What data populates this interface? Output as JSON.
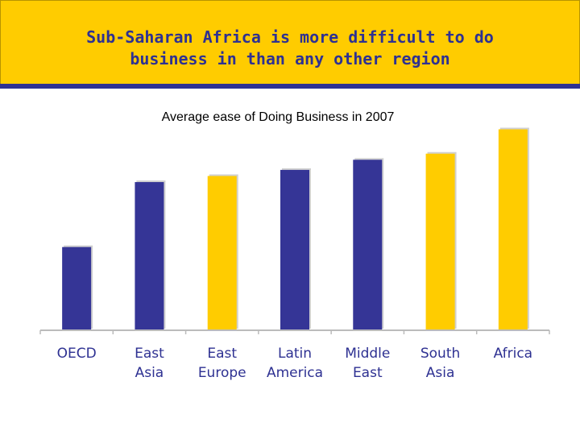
{
  "title_line1": "Sub-Saharan Africa is more difficult to do",
  "title_line2": "business in than any other region",
  "chart_data": {
    "type": "bar",
    "title": "Average ease of Doing Business in 2007",
    "categories": [
      [
        "OECD"
      ],
      [
        "East",
        "Asia"
      ],
      [
        "East",
        "Europe"
      ],
      [
        "Latin",
        "America"
      ],
      [
        "Middle",
        "East"
      ],
      [
        "South",
        "Asia"
      ],
      [
        "Africa"
      ]
    ],
    "values": [
      41,
      73,
      76,
      79,
      84,
      87,
      99
    ],
    "highlight": [
      false,
      false,
      true,
      false,
      false,
      true,
      true
    ],
    "colors": {
      "normal": "#353596",
      "highlight": "#ffcc00",
      "text": "#2e3192",
      "axis": "#bbbbbb"
    },
    "xlabel": "",
    "ylabel": "",
    "ylim": [
      0,
      100
    ],
    "grid": false
  }
}
